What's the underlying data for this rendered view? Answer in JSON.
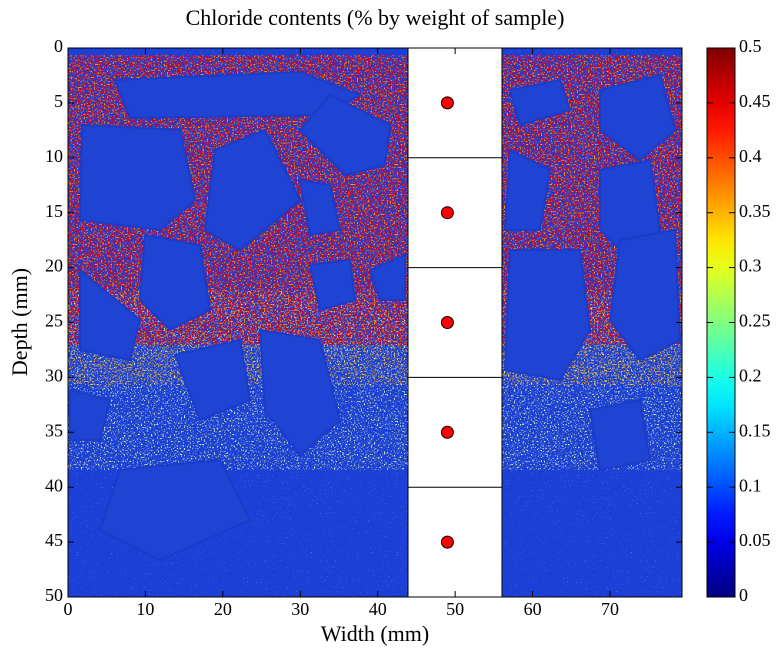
{
  "chart_data": {
    "type": "scatter",
    "title": "Chloride contents (% by weight of sample)",
    "xlabel": "Width (mm)",
    "ylabel": "Depth (mm)",
    "xlim": [
      0,
      79.3
    ],
    "xticks": [
      0,
      10,
      20,
      30,
      40,
      50,
      60,
      70
    ],
    "ylim": [
      50,
      0
    ],
    "yticks": [
      0,
      5,
      10,
      15,
      20,
      25,
      30,
      35,
      40,
      45,
      50
    ],
    "series": [
      {
        "color": "#ff0000",
        "x": [
          49,
          49,
          49,
          49,
          49
        ],
        "values": [
          5,
          15,
          25,
          35,
          45
        ]
      }
    ],
    "colorbar": {
      "colormap": "jet",
      "lim": [
        0,
        0.5
      ],
      "ticks": [
        0,
        0.05,
        0.1,
        0.15,
        0.2,
        0.25,
        0.3,
        0.35,
        0.4,
        0.45,
        0.5
      ]
    }
  }
}
